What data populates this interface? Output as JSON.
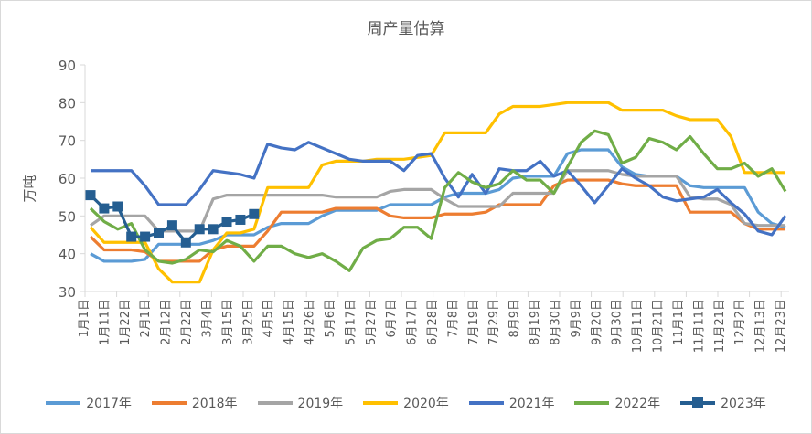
{
  "chart_data": {
    "type": "line",
    "title": "周产量估算",
    "ylabel": "万吨",
    "xlabel": "",
    "ylim": [
      30,
      90
    ],
    "yticks": [
      30,
      40,
      50,
      60,
      70,
      80,
      90
    ],
    "grid": false,
    "legend_position": "bottom",
    "x_tick_labels": [
      "1月1日",
      "1月11日",
      "1月22日",
      "2月1日",
      "2月12日",
      "2月22日",
      "3月4日",
      "3月15日",
      "3月25日",
      "4月5日",
      "4月15日",
      "4月26日",
      "5月6日",
      "5月17日",
      "5月27日",
      "6月7日",
      "6月17日",
      "6月28日",
      "7月8日",
      "7月19日",
      "7月29日",
      "8月9日",
      "8月19日",
      "8月30日",
      "9月9日",
      "9月20日",
      "9月30日",
      "10月11日",
      "10月21日",
      "11月1日",
      "11月11日",
      "11月21日",
      "12月2日",
      "12月13日",
      "12月23日"
    ],
    "series": [
      {
        "name": "2017年",
        "color": "#5B9BD5",
        "marker": false,
        "values": [
          40,
          38,
          38,
          38,
          38.5,
          42.5,
          42.5,
          42.5,
          42.5,
          43.5,
          45,
          45,
          45,
          47,
          48,
          48,
          48,
          50,
          51.5,
          51.5,
          51.5,
          51.5,
          53,
          53,
          53,
          53,
          55,
          56,
          56,
          56,
          57,
          60,
          60.5,
          60.5,
          60.5,
          66.5,
          67.5,
          67.5,
          67.5,
          63,
          61,
          60.5,
          60.5,
          60.5,
          58,
          57.5,
          57.5,
          57.5,
          57.5,
          51,
          48,
          47
        ]
      },
      {
        "name": "2018年",
        "color": "#ED7D31",
        "marker": false,
        "values": [
          44.5,
          41,
          41,
          41,
          40.5,
          38,
          38,
          38,
          38,
          41,
          42,
          42,
          42,
          46,
          51,
          51,
          51,
          51,
          52,
          52,
          52,
          52,
          50,
          49.5,
          49.5,
          49.5,
          50.5,
          50.5,
          50.5,
          51,
          53,
          53,
          53,
          53,
          58,
          59.5,
          59.5,
          59.5,
          59.5,
          58.5,
          58,
          58,
          58,
          58,
          51,
          51,
          51,
          51,
          48,
          46.5,
          46.5,
          46.5
        ]
      },
      {
        "name": "2019年",
        "color": "#A5A5A5",
        "marker": false,
        "values": [
          47.5,
          50,
          50,
          50,
          50,
          46,
          46,
          46,
          46,
          54.5,
          55.5,
          55.5,
          55.5,
          55.5,
          55.5,
          55.5,
          55.5,
          55.5,
          55,
          55,
          55,
          55,
          56.5,
          57,
          57,
          57,
          54.5,
          52.5,
          52.5,
          52.5,
          52.5,
          56,
          56,
          56,
          56,
          62,
          62,
          62,
          62,
          61,
          60.5,
          60.5,
          60.5,
          60.5,
          55,
          54.5,
          54.5,
          53,
          48,
          47.5,
          47.5,
          47.5
        ]
      },
      {
        "name": "2020年",
        "color": "#FFC000",
        "marker": false,
        "values": [
          47,
          43,
          43,
          43,
          43,
          36,
          32.5,
          32.5,
          32.5,
          41,
          45.5,
          45.5,
          46.5,
          57.5,
          57.5,
          57.5,
          57.5,
          63.5,
          64.5,
          64.5,
          64.5,
          65,
          65,
          65,
          65.5,
          66,
          72,
          72,
          72,
          72,
          77,
          79,
          79,
          79,
          79.5,
          80,
          80,
          80,
          80,
          78,
          78,
          78,
          78,
          76.5,
          75.5,
          75.5,
          75.5,
          71,
          61.5,
          61.5,
          61.5,
          61.5
        ]
      },
      {
        "name": "2021年",
        "color": "#4472C4",
        "marker": false,
        "values": [
          62,
          62,
          62,
          62,
          58,
          53,
          53,
          53,
          57,
          62,
          61.5,
          61,
          60,
          69,
          68,
          67.5,
          69.5,
          68,
          66.5,
          65,
          64.5,
          64.5,
          64.5,
          62,
          66,
          66.5,
          60,
          55,
          61,
          56,
          62.5,
          62,
          62,
          64.5,
          60.5,
          62,
          58,
          53.5,
          58,
          62.5,
          60,
          58,
          55,
          54,
          54.5,
          55,
          57,
          53.5,
          50.5,
          46,
          45,
          50
        ]
      },
      {
        "name": "2022年",
        "color": "#70AD47",
        "marker": false,
        "values": [
          52,
          48.5,
          46.5,
          48,
          41,
          38,
          37.5,
          38.5,
          41,
          40.5,
          43.5,
          42,
          38,
          42,
          42,
          40,
          39,
          40,
          38,
          35.5,
          41.5,
          43.5,
          44,
          47,
          47,
          44,
          57.5,
          61.5,
          59,
          57.5,
          58.5,
          62,
          59.5,
          59.5,
          56,
          63,
          69.5,
          72.5,
          71.5,
          64,
          65.5,
          70.5,
          69.5,
          67.5,
          71,
          66.5,
          62.5,
          62.5,
          64,
          60.5,
          62.5,
          56.5
        ]
      },
      {
        "name": "2023年",
        "color": "#255E91",
        "marker": true,
        "values": [
          55.5,
          52,
          52.5,
          44.5,
          44.5,
          45.5,
          47.5,
          43,
          46.5,
          46.5,
          48.5,
          49,
          50.5
        ]
      }
    ]
  }
}
